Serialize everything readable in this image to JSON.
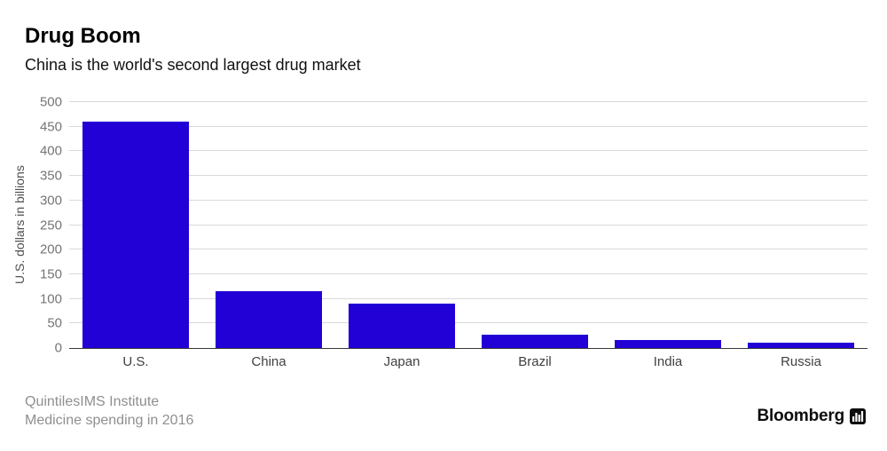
{
  "header": {
    "title": "Drug Boom",
    "subtitle": "China is the world's second largest drug market"
  },
  "chart_data": {
    "type": "bar",
    "categories": [
      "U.S.",
      "China",
      "Japan",
      "Brazil",
      "India",
      "Russia"
    ],
    "values": [
      460,
      116,
      90,
      27,
      17,
      10
    ],
    "title": "Drug Boom",
    "xlabel": "",
    "ylabel": "U.S. dollars in billions",
    "ylim": [
      0,
      500
    ],
    "yticks": [
      0,
      50,
      100,
      150,
      200,
      250,
      300,
      350,
      400,
      450,
      500
    ],
    "grid": true,
    "legend": "none",
    "bar_color": "#2101d6",
    "gridline_color": "#d9d9d9",
    "axis_line_color": "#383838",
    "tick_label_color": "#757575"
  },
  "footer": {
    "source": "QuintilesIMS Institute",
    "note": "Medicine spending in 2016",
    "brand": "Bloomberg"
  }
}
